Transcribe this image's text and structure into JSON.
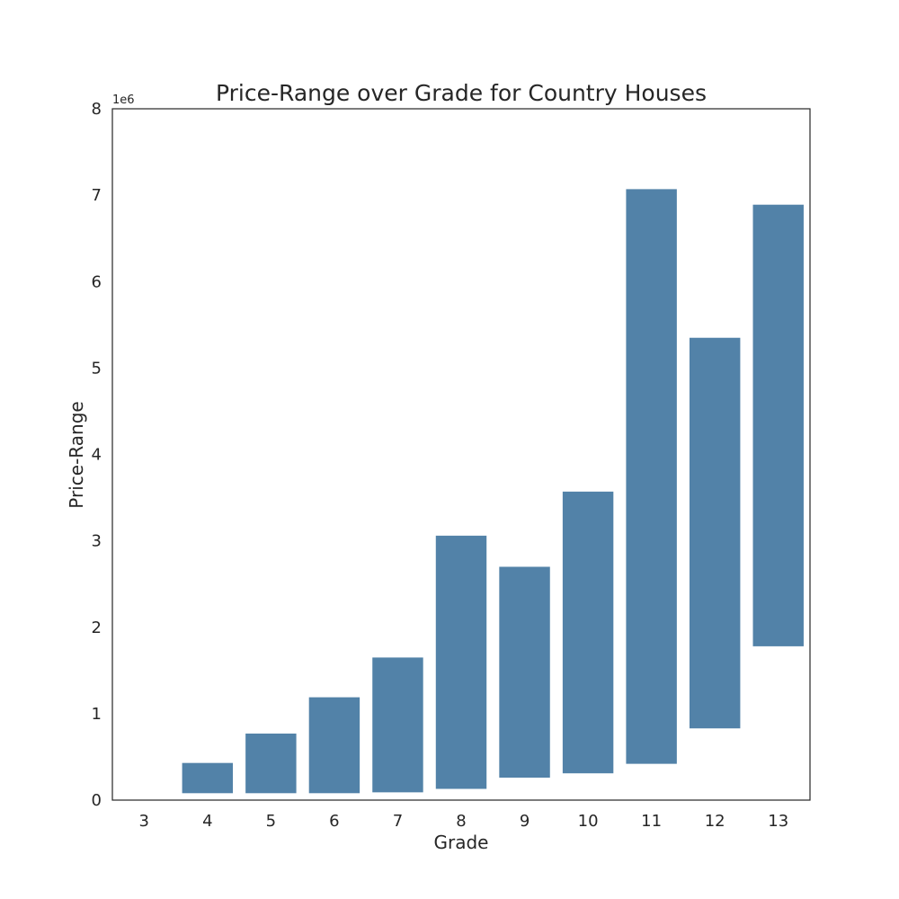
{
  "chart_data": {
    "type": "bar",
    "title": "Price-Range over Grade for Country Houses",
    "xlabel": "Grade",
    "ylabel": "Price-Range",
    "y_offset_label": "1e6",
    "ylim": [
      0,
      8000000
    ],
    "yticks": [
      0,
      1000000,
      2000000,
      3000000,
      4000000,
      5000000,
      6000000,
      7000000,
      8000000
    ],
    "ytick_labels": [
      "0",
      "1",
      "2",
      "3",
      "4",
      "5",
      "6",
      "7",
      "8"
    ],
    "categories": [
      "3",
      "4",
      "5",
      "6",
      "7",
      "8",
      "9",
      "10",
      "11",
      "12",
      "13"
    ],
    "bars": [
      {
        "grade": "3",
        "low": 0,
        "high": 0
      },
      {
        "grade": "4",
        "low": 80000,
        "high": 430000
      },
      {
        "grade": "5",
        "low": 80000,
        "high": 770000
      },
      {
        "grade": "6",
        "low": 80000,
        "high": 1190000
      },
      {
        "grade": "7",
        "low": 90000,
        "high": 1650000
      },
      {
        "grade": "8",
        "low": 130000,
        "high": 3060000
      },
      {
        "grade": "9",
        "low": 260000,
        "high": 2700000
      },
      {
        "grade": "10",
        "low": 310000,
        "high": 3570000
      },
      {
        "grade": "11",
        "low": 420000,
        "high": 7070000
      },
      {
        "grade": "12",
        "low": 830000,
        "high": 5350000
      },
      {
        "grade": "13",
        "low": 1780000,
        "high": 6890000
      }
    ],
    "bar_color": "#5282a8",
    "grid": false,
    "legend": "none"
  }
}
